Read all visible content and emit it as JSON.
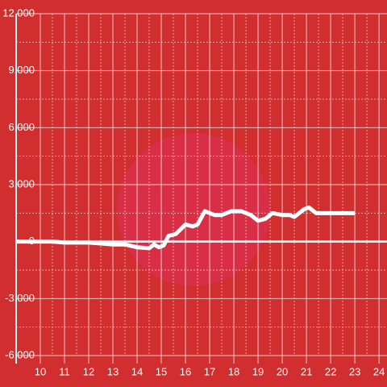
{
  "chart_data": {
    "type": "line",
    "x": [
      9,
      10,
      10.5,
      11,
      12,
      12.5,
      13,
      13.5,
      14,
      14.5,
      14.7,
      14.9,
      15.1,
      15.3,
      15.6,
      16,
      16.3,
      16.5,
      16.8,
      17.2,
      17.5,
      17.9,
      18.3,
      18.7,
      19,
      19.3,
      19.6,
      20,
      20.3,
      20.5,
      20.9,
      21.1,
      21.4,
      22,
      23
    ],
    "series": [
      {
        "color": "#ffffff",
        "values": [
          0,
          0,
          0,
          -50,
          -50,
          -100,
          -150,
          -150,
          -300,
          -350,
          -150,
          -300,
          -200,
          300,
          400,
          900,
          800,
          900,
          1600,
          1400,
          1400,
          1600,
          1600,
          1400,
          1100,
          1200,
          1500,
          1400,
          1400,
          1300,
          1700,
          1800,
          1500,
          1500,
          1500
        ]
      }
    ],
    "xlim": [
      9,
      24.33
    ],
    "xticks": [
      10,
      11,
      12,
      13,
      14,
      15,
      16,
      17,
      18,
      19,
      20,
      21,
      22,
      23,
      24
    ],
    "ylim": [
      -6000,
      12000
    ],
    "yticks": [
      {
        "value": -6000,
        "label": "-6,000"
      },
      {
        "value": -3000,
        "label": "-3,000"
      },
      0,
      {
        "value": 3000,
        "label": "3,000"
      },
      {
        "value": 6000,
        "label": "6,000"
      },
      {
        "value": 9000,
        "label": "9,000"
      },
      {
        "value": 12000,
        "label": "12,000"
      }
    ],
    "grid": true
  }
}
